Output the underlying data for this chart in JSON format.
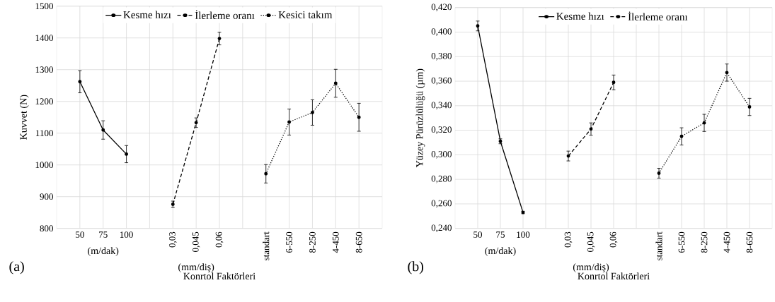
{
  "chart_data": [
    {
      "type": "line",
      "xlabel": "Konrtol Faktörleri",
      "ylabel": "Kuvvet (N)",
      "categories": [
        "50",
        "75",
        "100",
        null,
        "0,03",
        "0,045",
        "0,06",
        null,
        "standart",
        "6-550",
        "8-250",
        "4-450",
        "8-650"
      ],
      "ylim": [
        800,
        1500
      ],
      "yticks": [
        800,
        900,
        1000,
        1100,
        1200,
        1300,
        1400,
        1500
      ],
      "grid": true,
      "legend": "top",
      "marker": "circle",
      "annotations": [
        "(m/dak)",
        "(mm/diş)",
        "(a)"
      ],
      "series": [
        {
          "name": "Kesme hızı",
          "color": "#000000",
          "line_style": "solid",
          "values": [
            1262,
            1110,
            1034,
            null,
            null,
            null,
            null,
            null,
            null,
            null,
            null,
            null,
            null
          ],
          "errors": [
            35,
            29,
            27,
            null,
            null,
            null,
            null,
            null,
            null,
            null,
            null,
            null,
            null
          ]
        },
        {
          "name": "İlerleme oranı",
          "color": "#000000",
          "line_style": "dashed",
          "values": [
            null,
            null,
            null,
            null,
            876,
            1133,
            1398,
            null,
            null,
            null,
            null,
            null,
            null
          ],
          "errors": [
            null,
            null,
            null,
            null,
            10,
            15,
            20,
            null,
            null,
            null,
            null,
            null,
            null
          ]
        },
        {
          "name": "Kesici takım",
          "color": "#000000",
          "line_style": "dotted",
          "values": [
            null,
            null,
            null,
            null,
            null,
            null,
            null,
            null,
            972,
            1135,
            1165,
            1257,
            1150
          ],
          "errors": [
            null,
            null,
            null,
            null,
            null,
            null,
            null,
            null,
            29,
            41,
            40,
            44,
            44
          ]
        }
      ]
    },
    {
      "type": "line",
      "xlabel": "Konrtol Faktörleri",
      "ylabel": "Yüzey Pürüzlülüğü (µm)",
      "categories": [
        "50",
        "75",
        "100",
        null,
        "0,03",
        "0,045",
        "0,06",
        null,
        "standart",
        "6-550",
        "8-250",
        "4-450",
        "8-650"
      ],
      "ylim": [
        0.24,
        0.42
      ],
      "yticks": [
        {
          "value": 0.24,
          "label": "0,240"
        },
        {
          "value": 0.26,
          "label": "0,260"
        },
        {
          "value": 0.28,
          "label": "0,280"
        },
        {
          "value": 0.3,
          "label": "0,300"
        },
        {
          "value": 0.32,
          "label": "0,320"
        },
        {
          "value": 0.34,
          "label": "0,340"
        },
        {
          "value": 0.36,
          "label": "0,360"
        },
        {
          "value": 0.38,
          "label": "0,380"
        },
        {
          "value": 0.4,
          "label": "0,400"
        },
        {
          "value": 0.42,
          "label": "0,420"
        }
      ],
      "grid": true,
      "legend": "top",
      "marker": "circle",
      "annotations": [
        "(m/dak)",
        "(mm/diş)",
        "(b)"
      ],
      "series": [
        {
          "name": "Kesme hızı",
          "color": "#000000",
          "line_style": "solid",
          "values": [
            0.405,
            0.311,
            0.253,
            null,
            null,
            null,
            null,
            null,
            null,
            null,
            null,
            null,
            null
          ],
          "errors": [
            0.004,
            0.002,
            0.001,
            null,
            null,
            null,
            null,
            null,
            null,
            null,
            null,
            null,
            null
          ]
        },
        {
          "name": "İlerleme oranı",
          "color": "#000000",
          "line_style": "dashed",
          "values": [
            null,
            null,
            null,
            null,
            0.299,
            0.321,
            0.359,
            null,
            null,
            null,
            null,
            null,
            null
          ],
          "errors": [
            null,
            null,
            null,
            null,
            0.004,
            0.005,
            0.006,
            null,
            null,
            null,
            null,
            null,
            null
          ]
        },
        {
          "color": "#000000",
          "line_style": "dotted",
          "values": [
            null,
            null,
            null,
            null,
            null,
            null,
            null,
            null,
            0.285,
            0.315,
            0.326,
            0.367,
            0.339
          ],
          "errors": [
            null,
            null,
            null,
            null,
            null,
            null,
            null,
            null,
            0.004,
            0.007,
            0.007,
            0.007,
            0.007
          ]
        }
      ]
    }
  ]
}
